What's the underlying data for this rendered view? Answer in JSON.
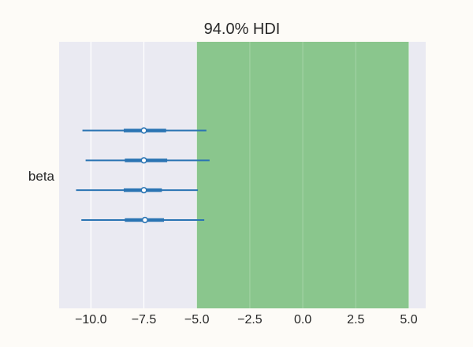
{
  "chart_data": {
    "type": "forest",
    "title": "94.0% HDI",
    "xlabel": "",
    "ylabel": "",
    "xlim": [
      -11.5,
      5.8
    ],
    "x_ticks": [
      -10.0,
      -7.5,
      -5.0,
      -2.5,
      0.0,
      2.5,
      5.0
    ],
    "x_tick_labels": [
      "−10.0",
      "−7.5",
      "−5.0",
      "−2.5",
      "0.0",
      "2.5",
      "5.0"
    ],
    "grid": true,
    "parameter": "beta",
    "region": {
      "from": -5.0,
      "to": 5.0,
      "color": "#8ac68d"
    },
    "colors": {
      "background": "#eaeaf2",
      "series": "#2a74b3",
      "grid": "#ffffff"
    },
    "chains": [
      {
        "hdi_low": -10.4,
        "hdi_high": -4.55,
        "iqr_low": -8.45,
        "iqr_high": -6.45,
        "median": -7.5
      },
      {
        "hdi_low": -10.25,
        "hdi_high": -4.4,
        "iqr_low": -8.4,
        "iqr_high": -6.4,
        "median": -7.5
      },
      {
        "hdi_low": -10.7,
        "hdi_high": -4.95,
        "iqr_low": -8.45,
        "iqr_high": -6.65,
        "median": -7.5
      },
      {
        "hdi_low": -10.45,
        "hdi_high": -4.65,
        "iqr_low": -8.4,
        "iqr_high": -6.55,
        "median": -7.45
      }
    ]
  }
}
